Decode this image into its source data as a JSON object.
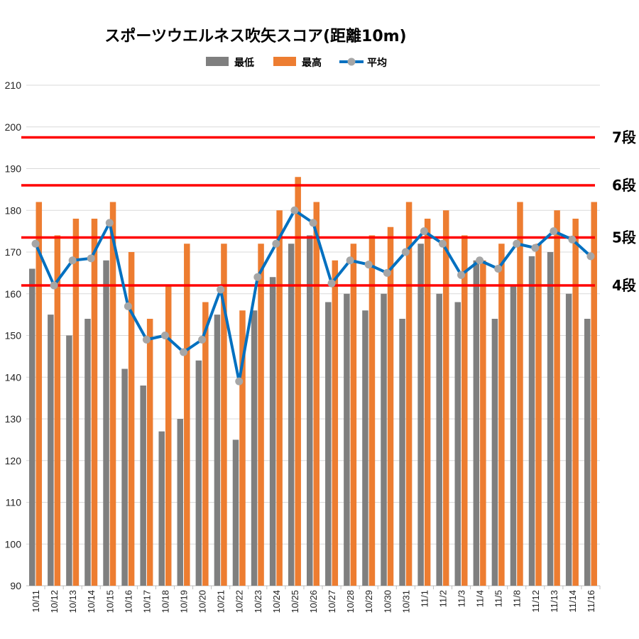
{
  "chart_data": {
    "type": "bar",
    "title": "スポーツウエルネス吹矢スコア(距離10m)",
    "categories": [
      "10/11",
      "10/12",
      "10/13",
      "10/14",
      "10/15",
      "10/16",
      "10/17",
      "10/18",
      "10/19",
      "10/20",
      "10/21",
      "10/22",
      "10/23",
      "10/24",
      "10/25",
      "10/26",
      "10/27",
      "10/28",
      "10/29",
      "10/30",
      "10/31",
      "11/1",
      "11/2",
      "11/3",
      "11/4",
      "11/5",
      "11/8",
      "11/12",
      "11/13",
      "11/14",
      "11/16"
    ],
    "series": [
      {
        "name": "最低",
        "type": "bar",
        "color": "#7f7f7f",
        "values": [
          166,
          155,
          150,
          154,
          168,
          142,
          138,
          127,
          130,
          144,
          155,
          125,
          156,
          164,
          172,
          174,
          158,
          160,
          156,
          160,
          154,
          172,
          160,
          158,
          168,
          154,
          162,
          169,
          170,
          160,
          154
        ]
      },
      {
        "name": "最高",
        "type": "bar",
        "color": "#ed7d31",
        "values": [
          182,
          174,
          178,
          178,
          182,
          170,
          154,
          162,
          172,
          158,
          172,
          156,
          172,
          180,
          188,
          182,
          168,
          172,
          174,
          176,
          182,
          178,
          180,
          174,
          168,
          172,
          182,
          172,
          180,
          178,
          182
        ]
      },
      {
        "name": "平均",
        "type": "line",
        "color": "#0070c0",
        "marker_color": "#a6a6a6",
        "values": [
          172,
          162,
          168,
          168.5,
          177,
          157,
          149,
          150,
          146,
          149,
          161,
          139,
          164,
          172,
          180,
          177,
          162.5,
          168,
          167,
          165,
          170,
          175,
          172,
          164.5,
          168,
          166,
          172,
          171,
          175,
          173,
          169
        ]
      }
    ],
    "ylim": [
      90,
      210
    ],
    "yticks": [
      90,
      100,
      110,
      120,
      130,
      140,
      150,
      160,
      170,
      180,
      190,
      200,
      210
    ],
    "reference_lines": [
      {
        "label": "7段",
        "value": 197.5,
        "color": "#ff0000"
      },
      {
        "label": "6段",
        "value": 186,
        "color": "#ff0000"
      },
      {
        "label": "5段",
        "value": 173.5,
        "color": "#ff0000"
      },
      {
        "label": "4段",
        "value": 162,
        "color": "#ff0000"
      }
    ],
    "grid": true,
    "legend_position": "top"
  }
}
